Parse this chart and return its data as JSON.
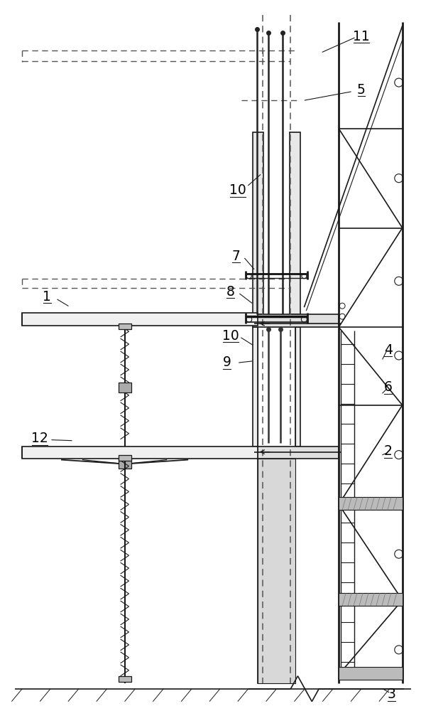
{
  "bg_color": "#ffffff",
  "lc": "#1a1a1a",
  "dc": "#555555",
  "fig_width": 5.93,
  "fig_height": 10.0,
  "dpi": 100,
  "xlim": [
    0,
    593
  ],
  "ylim": [
    0,
    1000
  ]
}
